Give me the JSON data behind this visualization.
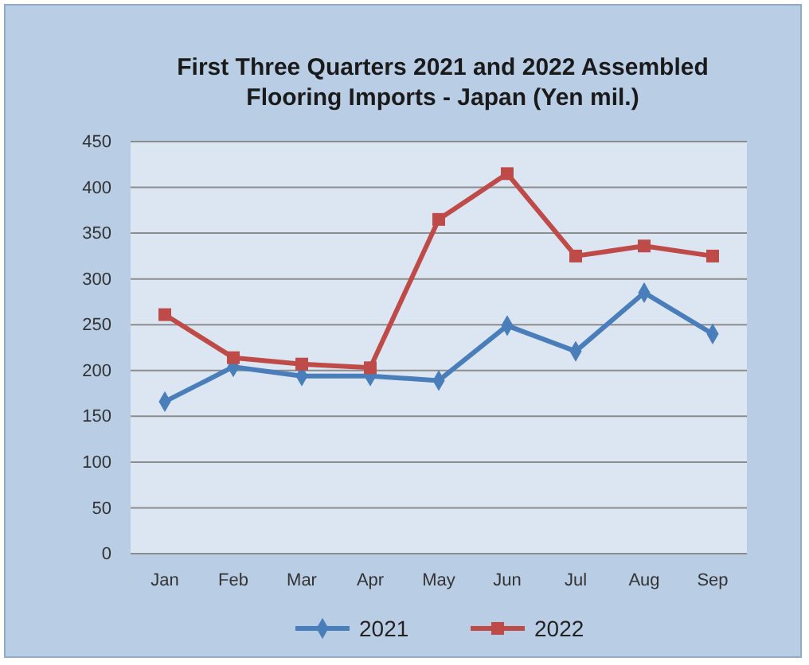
{
  "chart_data": {
    "type": "line",
    "title": "First Three Quarters 2021 and 2022 Assembled Flooring Imports - Japan (Yen mil.)",
    "categories": [
      "Jan",
      "Feb",
      "Mar",
      "Apr",
      "May",
      "Jun",
      "Jul",
      "Aug",
      "Sep"
    ],
    "series": [
      {
        "name": "2021",
        "color": "#4a7ebb",
        "marker": "diamond",
        "values": [
          166,
          204,
          194,
          194,
          189,
          249,
          221,
          285,
          240
        ]
      },
      {
        "name": "2022",
        "color": "#be4b48",
        "marker": "square",
        "values": [
          261,
          214,
          207,
          203,
          365,
          415,
          325,
          336,
          325
        ]
      }
    ],
    "ylim": [
      0,
      450
    ],
    "yticks": [
      0,
      50,
      100,
      150,
      200,
      250,
      300,
      350,
      400,
      450
    ],
    "grid": "y",
    "legend": "bottom"
  }
}
